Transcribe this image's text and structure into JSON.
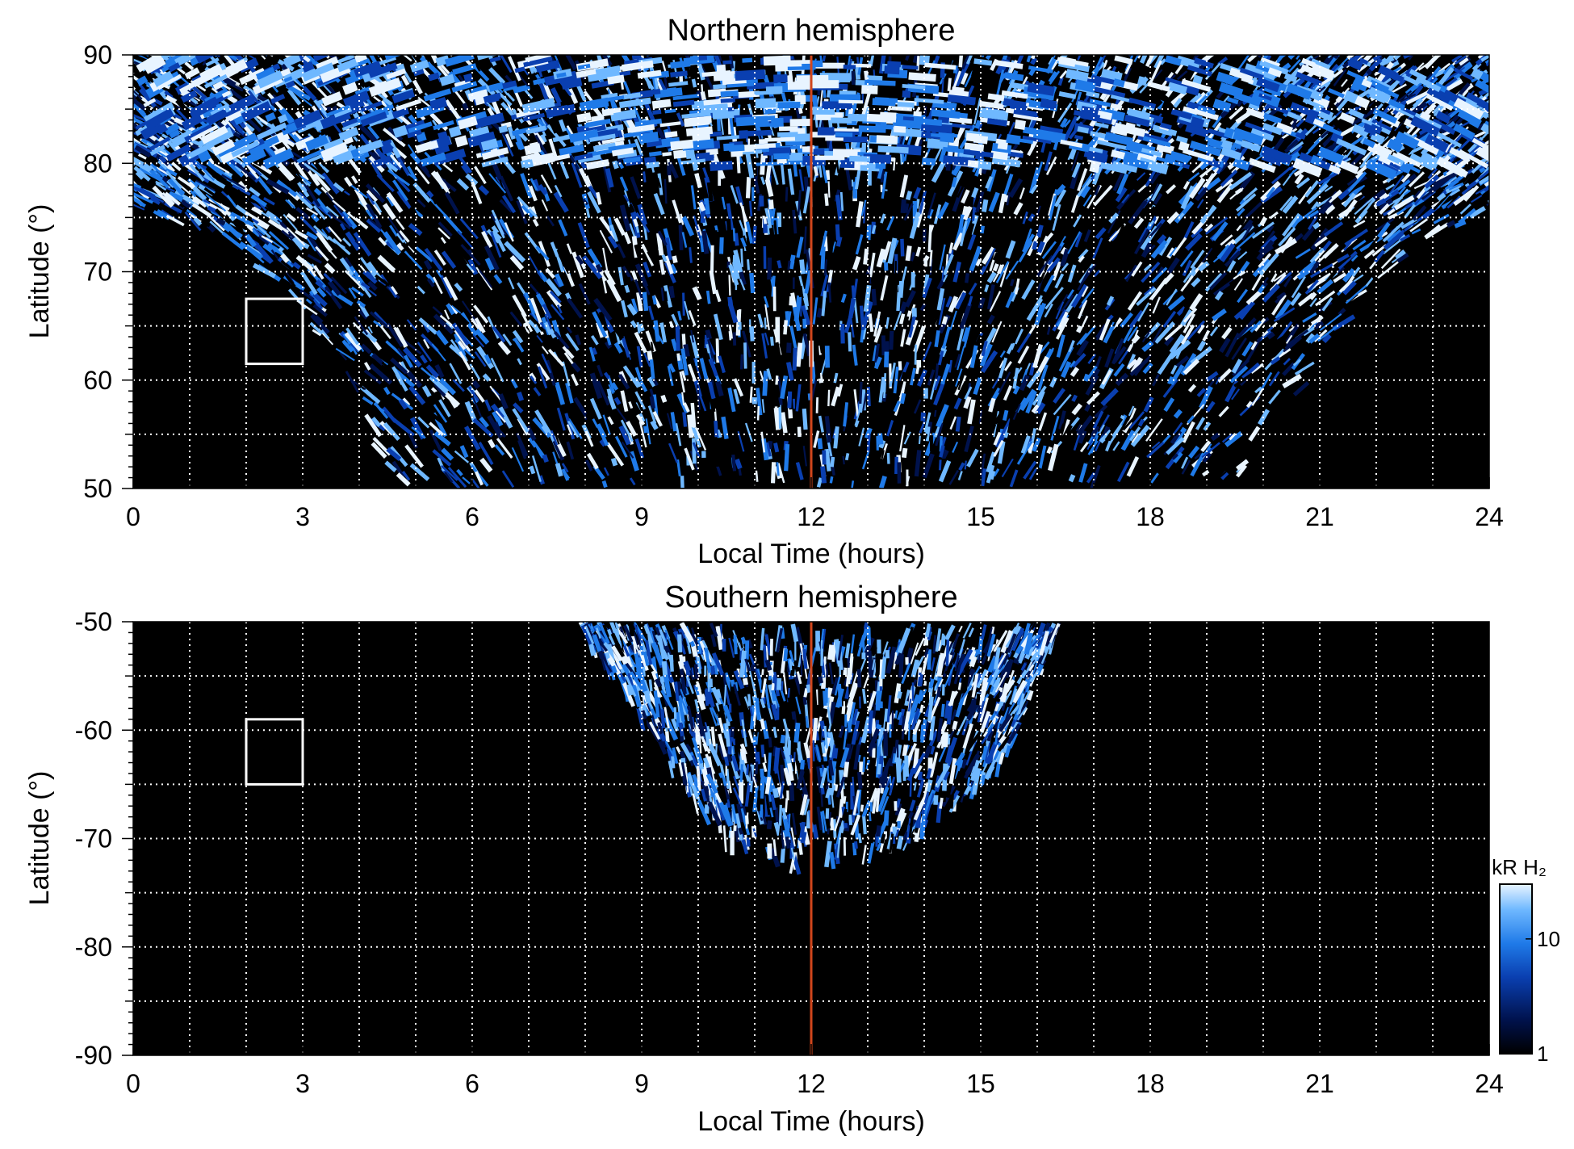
{
  "colors": {
    "background": "#000000",
    "noon_line": "#d1461c",
    "grid": "#ffffff",
    "box": "#ffffff",
    "colormap": [
      "#000000",
      "#00124d",
      "#0a3fb0",
      "#1f7ae8",
      "#6fb8ff",
      "#e8f4ff"
    ]
  },
  "chart_data": [
    {
      "type": "heatmap",
      "title": "Northern hemisphere",
      "xlabel": "Local Time (hours)",
      "ylabel": "Latitude (°)",
      "xlim": [
        0,
        24
      ],
      "ylim": [
        50,
        90
      ],
      "xticks": [
        0,
        3,
        6,
        9,
        12,
        15,
        18,
        21,
        24
      ],
      "yticks": [
        50,
        60,
        70,
        80,
        90
      ],
      "x_grid_hours": [
        1,
        2,
        3,
        4,
        5,
        6,
        7,
        8,
        9,
        10,
        11,
        13,
        14,
        15,
        16,
        17,
        18,
        19,
        20,
        21,
        22,
        23
      ],
      "y_grid_deg": [
        55,
        60,
        65,
        70,
        75,
        80,
        85
      ],
      "noon_line_hour": 12,
      "box": {
        "lt": [
          2,
          3
        ],
        "lat": [
          61.5,
          67.5
        ]
      },
      "coverage_boundary": [
        [
          0,
          76
        ],
        [
          1,
          74
        ],
        [
          2,
          72
        ],
        [
          3,
          67
        ],
        [
          4,
          58
        ],
        [
          4.7,
          50
        ],
        [
          19.4,
          50
        ],
        [
          20.5,
          58
        ],
        [
          21.5,
          67
        ],
        [
          23,
          73
        ],
        [
          24,
          76
        ]
      ]
    },
    {
      "type": "heatmap",
      "title": "Southern hemisphere",
      "xlabel": "Local Time (hours)",
      "ylabel": "Latitude (°)",
      "xlim": [
        0,
        24
      ],
      "ylim": [
        -90,
        -50
      ],
      "xticks": [
        0,
        3,
        6,
        9,
        12,
        15,
        18,
        21,
        24
      ],
      "yticks": [
        -90,
        -80,
        -70,
        -60,
        -50
      ],
      "x_grid_hours": [
        1,
        2,
        3,
        4,
        5,
        6,
        7,
        8,
        9,
        10,
        11,
        13,
        14,
        15,
        16,
        17,
        18,
        19,
        20,
        21,
        22,
        23
      ],
      "y_grid_deg": [
        -55,
        -60,
        -65,
        -70,
        -75,
        -80,
        -85
      ],
      "noon_line_hour": 12,
      "box": {
        "lt": [
          2,
          3
        ],
        "lat": [
          -65,
          -59
        ]
      },
      "coverage_boundary": [
        [
          7.9,
          -50
        ],
        [
          8.8,
          -57
        ],
        [
          9.6,
          -64
        ],
        [
          10.4,
          -69
        ],
        [
          11.2,
          -71
        ],
        [
          12,
          -72
        ],
        [
          12.8,
          -71
        ],
        [
          13.6,
          -70
        ],
        [
          14.6,
          -67
        ],
        [
          15.6,
          -61
        ],
        [
          16.4,
          -50
        ]
      ]
    }
  ],
  "colorbar": {
    "label": "kR H₂",
    "ticks": [
      {
        "value": 1,
        "label": "1"
      },
      {
        "value": 10,
        "label": "10"
      }
    ],
    "range": [
      1,
      30
    ],
    "scale": "log"
  }
}
